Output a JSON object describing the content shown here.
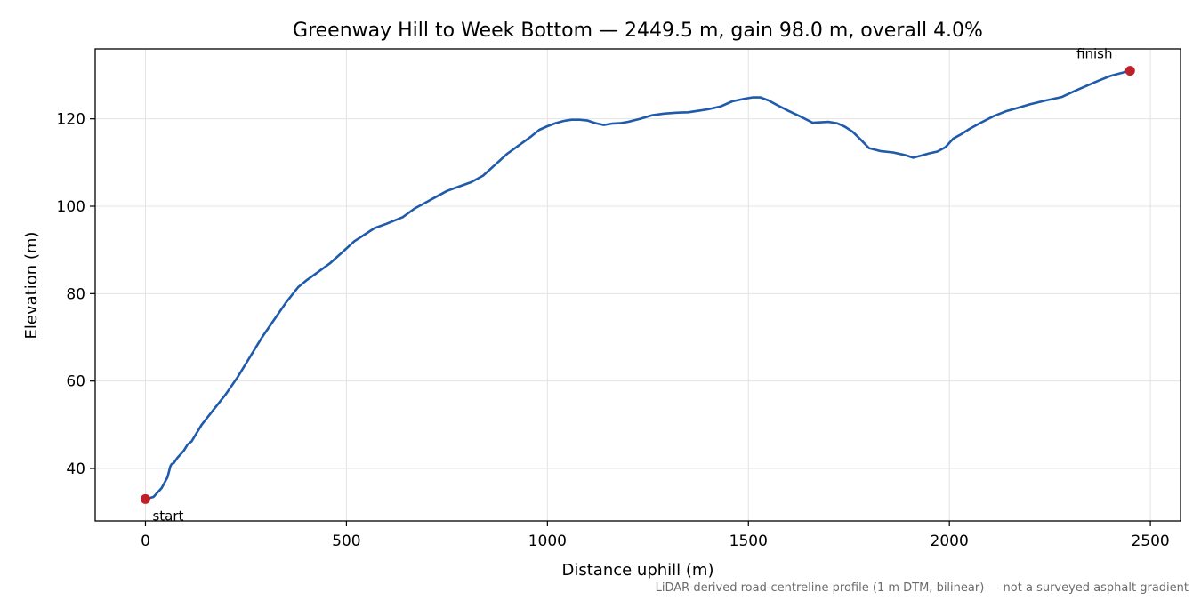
{
  "chart_data": {
    "type": "line",
    "title": "Greenway Hill to Week Bottom — 2449.5 m, gain 98.0 m, overall 4.0%",
    "xlabel": "Distance uphill (m)",
    "ylabel": "Elevation (m)",
    "xlim": [
      -125,
      2575
    ],
    "ylim": [
      28,
      136
    ],
    "xticks": [
      0,
      500,
      1000,
      1500,
      2000,
      2500
    ],
    "yticks": [
      40,
      60,
      80,
      100,
      120
    ],
    "grid": true,
    "line_color": "#1f5aab",
    "marker_color": "#c0202a",
    "series": [
      {
        "x": [
          0,
          20,
          40,
          55,
          62,
          65,
          70,
          80,
          95,
          105,
          112,
          115,
          120,
          140,
          170,
          200,
          230,
          260,
          290,
          320,
          350,
          380,
          400,
          430,
          460,
          490,
          520,
          545,
          570,
          600,
          640,
          670,
          700,
          720,
          750,
          780,
          810,
          840,
          870,
          900,
          930,
          960,
          980,
          1000,
          1020,
          1040,
          1060,
          1080,
          1100,
          1120,
          1140,
          1160,
          1180,
          1200,
          1230,
          1260,
          1290,
          1320,
          1350,
          1380,
          1400,
          1430,
          1460,
          1490,
          1510,
          1530,
          1550,
          1570,
          1600,
          1630,
          1660,
          1680,
          1700,
          1720,
          1740,
          1760,
          1780,
          1800,
          1830,
          1860,
          1890,
          1910,
          1930,
          1950,
          1970,
          1990,
          2010,
          2030,
          2050,
          2080,
          2110,
          2140,
          2170,
          2200,
          2240,
          2280,
          2310,
          2340,
          2370,
          2400,
          2420,
          2449.5
        ],
        "y": [
          33.0,
          33.5,
          35.5,
          38.0,
          40.5,
          41.0,
          41.2,
          42.5,
          44.0,
          45.5,
          46.0,
          46.2,
          47.0,
          50.0,
          53.5,
          57.0,
          61.0,
          65.5,
          70.0,
          74.0,
          78.0,
          81.5,
          83.0,
          85.0,
          87.0,
          89.5,
          92.0,
          93.5,
          95.0,
          96.0,
          97.5,
          99.5,
          101.0,
          102.0,
          103.5,
          104.5,
          105.5,
          107.0,
          109.5,
          112.0,
          114.0,
          116.0,
          117.5,
          118.3,
          119.0,
          119.5,
          119.8,
          119.8,
          119.6,
          119.0,
          118.6,
          118.9,
          119.0,
          119.3,
          120.0,
          120.8,
          121.2,
          121.4,
          121.5,
          121.9,
          122.2,
          122.8,
          124.0,
          124.6,
          124.9,
          124.9,
          124.2,
          123.2,
          121.8,
          120.5,
          119.1,
          119.2,
          119.3,
          119.0,
          118.2,
          117.0,
          115.2,
          113.3,
          112.6,
          112.3,
          111.7,
          111.1,
          111.6,
          112.1,
          112.5,
          113.5,
          115.5,
          116.5,
          117.7,
          119.2,
          120.6,
          121.7,
          122.5,
          123.3,
          124.2,
          125.0,
          126.3,
          127.5,
          128.7,
          129.8,
          130.3,
          131.0
        ]
      }
    ],
    "annotations": [
      {
        "text": "start",
        "x": 0,
        "y": 33.0
      },
      {
        "text": "finish",
        "x": 2449.5,
        "y": 131.0
      }
    ],
    "footnote": "LiDAR-derived road-centreline profile (1 m DTM, bilinear) — not a surveyed asphalt gradient"
  }
}
